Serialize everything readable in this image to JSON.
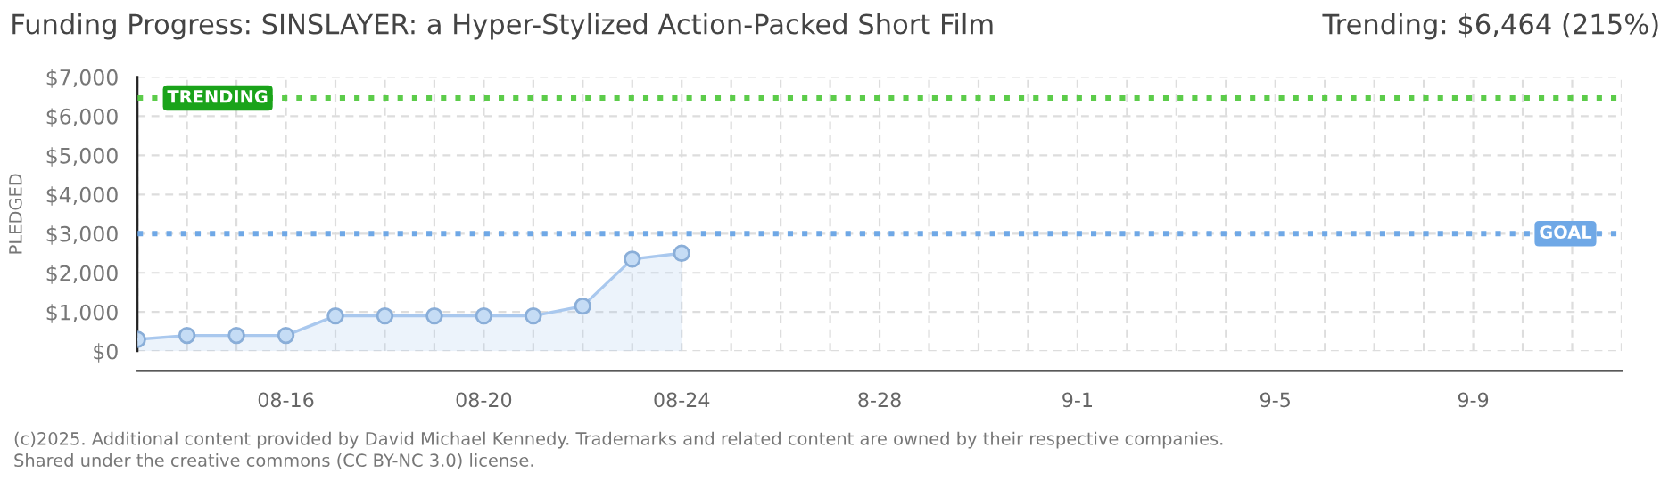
{
  "chart_data": {
    "type": "area",
    "title": "Funding Progress: SINSLAYER: a Hyper-Stylized Action-Packed Short Film",
    "subtitle": "Trending: $6,464 (215%)",
    "ylabel": "PLEDGED",
    "categories": [
      null,
      null,
      null,
      "08-16",
      null,
      null,
      null,
      "08-20",
      null,
      null,
      null,
      "08-24",
      null,
      null,
      null,
      "8-28",
      null,
      null,
      null,
      "9-1",
      null,
      null,
      null,
      "9-5",
      null,
      null,
      null,
      "9-9",
      null,
      null,
      null
    ],
    "series": [
      {
        "color": "#a9c8ee",
        "values": [
          300,
          400,
          400,
          400,
          900,
          900,
          900,
          900,
          900,
          1150,
          2350,
          2500,
          null,
          null,
          null,
          null,
          null,
          null,
          null,
          null,
          null,
          null,
          null,
          null,
          null,
          null,
          null,
          null,
          null,
          null,
          null
        ]
      }
    ],
    "ylim": [
      0,
      7000
    ],
    "yticks": [
      {
        "value": 0,
        "label": "$0"
      },
      {
        "value": 1000,
        "label": "$1,000"
      },
      {
        "value": 2000,
        "label": "$2,000"
      },
      {
        "value": 3000,
        "label": "$3,000"
      },
      {
        "value": 4000,
        "label": "$4,000"
      },
      {
        "value": 5000,
        "label": "$5,000"
      },
      {
        "value": 6000,
        "label": "$6,000"
      },
      {
        "value": 7000,
        "label": "$7,000"
      }
    ],
    "grid": true,
    "marker": "circle",
    "legend": false,
    "ref_lines": [
      {
        "axis": "y",
        "value": 6464,
        "label": "TRENDING",
        "color": "#5ccc4a",
        "line_style": "dotted"
      },
      {
        "axis": "y",
        "value": 3000,
        "label": "GOAL",
        "color": "#6fa8e6",
        "line_style": "dotted"
      }
    ],
    "annotations": [
      "(c)2025. Additional content provided by David Michael Kennedy. Trademarks and related content are owned by their respective companies.",
      "Shared under the creative commons (CC BY-NC 3.0) license."
    ]
  }
}
